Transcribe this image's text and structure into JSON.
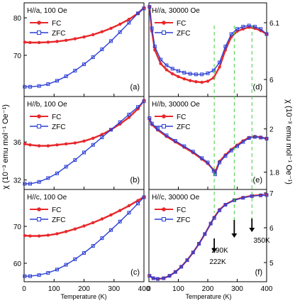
{
  "figure": {
    "left_ylabel": "χ (10⁻³ emu mol⁻¹ Oe⁻¹)",
    "right_ylabel": "χ (10⁻³ emu mol⁻¹ Oe⁻¹)",
    "xlabel": "Temperature (K)",
    "colors": {
      "FC": "#e8282b",
      "ZFC": "#2b3fd6",
      "guide": "#3ccf3c"
    },
    "transition_labels": [
      "222K",
      "290K",
      "350K"
    ],
    "transition_T": [
      222,
      290,
      350
    ]
  },
  "chart_data": [
    {
      "type": "line",
      "panel": "(a)",
      "title": "H//a, 100 Oe",
      "xlim": [
        0,
        400
      ],
      "ylim": [
        59,
        84
      ],
      "yticks": [
        70,
        80
      ],
      "xticks": [],
      "x": [
        2,
        20,
        50,
        80,
        110,
        140,
        170,
        200,
        230,
        260,
        290,
        320,
        350,
        380,
        400
      ],
      "series": [
        {
          "name": "FC",
          "values": [
            73.5,
            73.4,
            73.4,
            73.5,
            73.7,
            74.0,
            74.4,
            74.9,
            75.5,
            76.3,
            77.2,
            78.3,
            79.6,
            81.2,
            82.7
          ]
        },
        {
          "name": "ZFC",
          "values": [
            61.6,
            61.6,
            61.8,
            62.3,
            63.2,
            64.4,
            65.9,
            67.6,
            69.5,
            71.6,
            73.8,
            76.2,
            78.7,
            81.2,
            82.5
          ]
        }
      ]
    },
    {
      "type": "line",
      "panel": "(b)",
      "title": "H//b, 100 Oe",
      "xlim": [
        0,
        400
      ],
      "ylim": [
        31,
        40.8
      ],
      "yticks": [
        32,
        36
      ],
      "xticks": [],
      "x": [
        2,
        20,
        50,
        80,
        110,
        140,
        170,
        200,
        230,
        260,
        290,
        320,
        350,
        380,
        400
      ],
      "series": [
        {
          "name": "FC",
          "values": [
            35.8,
            35.7,
            35.6,
            35.6,
            35.7,
            35.8,
            35.9,
            36.1,
            36.4,
            36.8,
            37.3,
            37.9,
            38.6,
            39.5,
            40.4
          ]
        },
        {
          "name": "ZFC",
          "values": [
            31.6,
            31.6,
            31.8,
            32.2,
            32.7,
            33.4,
            34.1,
            34.9,
            35.7,
            36.5,
            37.3,
            38.1,
            38.9,
            39.7,
            40.3
          ]
        }
      ]
    },
    {
      "type": "line",
      "panel": "(c)",
      "title": "H//c, 100 Oe",
      "xlim": [
        0,
        400
      ],
      "ylim": [
        55,
        80
      ],
      "yticks": [
        60,
        70
      ],
      "xticks": [
        0,
        100,
        200,
        300,
        400
      ],
      "x": [
        2,
        20,
        50,
        80,
        110,
        140,
        170,
        200,
        230,
        260,
        290,
        320,
        350,
        380,
        400
      ],
      "series": [
        {
          "name": "FC",
          "values": [
            67.5,
            67.4,
            67.4,
            67.6,
            68.0,
            68.6,
            69.3,
            70.1,
            71.0,
            72.0,
            73.1,
            74.3,
            75.6,
            77.0,
            78.0
          ]
        },
        {
          "name": "ZFC",
          "values": [
            56.5,
            56.5,
            56.8,
            57.4,
            58.3,
            59.6,
            61.1,
            62.8,
            64.7,
            66.8,
            69.0,
            71.3,
            73.7,
            76.2,
            77.9
          ]
        }
      ]
    },
    {
      "type": "line",
      "panel": "(d)",
      "title": "H//a, 30000 Oe",
      "xlim": [
        0,
        400
      ],
      "ylim": [
        5.97,
        6.135
      ],
      "yticks": [
        6.0,
        6.1
      ],
      "xticks": [],
      "x": [
        2,
        10,
        20,
        40,
        60,
        80,
        100,
        120,
        140,
        160,
        180,
        200,
        220,
        240,
        260,
        280,
        300,
        320,
        340,
        360,
        380,
        400
      ],
      "series": [
        {
          "name": "FC",
          "values": [
            6.128,
            6.085,
            6.052,
            6.028,
            6.017,
            6.01,
            6.005,
            6.001,
            5.998,
            5.996,
            5.995,
            5.997,
            6.003,
            6.022,
            6.052,
            6.075,
            6.085,
            6.089,
            6.092,
            6.09,
            6.086,
            6.08
          ]
        },
        {
          "name": "ZFC",
          "values": [
            6.128,
            6.09,
            6.058,
            6.035,
            6.025,
            6.019,
            6.015,
            6.012,
            6.01,
            6.009,
            6.009,
            6.011,
            6.016,
            6.03,
            6.058,
            6.08,
            6.089,
            6.093,
            6.095,
            6.093,
            6.089,
            6.08
          ]
        }
      ]
    },
    {
      "type": "line",
      "panel": "(e)",
      "title": "H//b, 30000 Oe",
      "xlim": [
        0,
        400
      ],
      "ylim": [
        1.72,
        2.15
      ],
      "yticks": [
        1.8,
        2.0
      ],
      "xticks": [],
      "x": [
        2,
        10,
        30,
        60,
        90,
        120,
        150,
        180,
        200,
        220,
        225,
        240,
        260,
        280,
        300,
        320,
        340,
        360,
        380,
        400
      ],
      "series": [
        {
          "name": "FC",
          "values": [
            2.045,
            2.02,
            1.995,
            1.965,
            1.94,
            1.915,
            1.89,
            1.86,
            1.84,
            1.81,
            1.8,
            1.85,
            1.88,
            1.905,
            1.925,
            1.945,
            1.96,
            1.965,
            1.962,
            1.955
          ]
        },
        {
          "name": "ZFC",
          "values": [
            2.05,
            2.025,
            2.0,
            1.97,
            1.945,
            1.92,
            1.895,
            1.865,
            1.845,
            1.805,
            1.79,
            1.845,
            1.875,
            1.9,
            1.92,
            1.94,
            1.958,
            1.963,
            1.96,
            1.955
          ]
        }
      ]
    },
    {
      "type": "line",
      "panel": "(f)",
      "title": "H//c, 30000 Oe",
      "xlim": [
        0,
        400
      ],
      "ylim": [
        4.45,
        7.1
      ],
      "yticks": [
        5,
        6,
        7
      ],
      "xticks": [
        0,
        100,
        200,
        300,
        400
      ],
      "x": [
        2,
        15,
        30,
        50,
        70,
        90,
        110,
        130,
        150,
        170,
        190,
        210,
        222,
        240,
        260,
        290,
        320,
        350,
        380,
        400
      ],
      "series": [
        {
          "name": "FC",
          "values": [
            4.62,
            4.55,
            4.53,
            4.55,
            4.62,
            4.73,
            4.88,
            5.07,
            5.29,
            5.54,
            5.82,
            6.12,
            6.3,
            6.52,
            6.67,
            6.8,
            6.87,
            6.92,
            6.94,
            6.95
          ]
        },
        {
          "name": "ZFC",
          "values": [
            4.62,
            4.55,
            4.53,
            4.55,
            4.62,
            4.73,
            4.88,
            5.07,
            5.29,
            5.54,
            5.82,
            6.12,
            6.28,
            6.5,
            6.66,
            6.79,
            6.86,
            6.91,
            6.93,
            6.94
          ]
        }
      ]
    }
  ]
}
